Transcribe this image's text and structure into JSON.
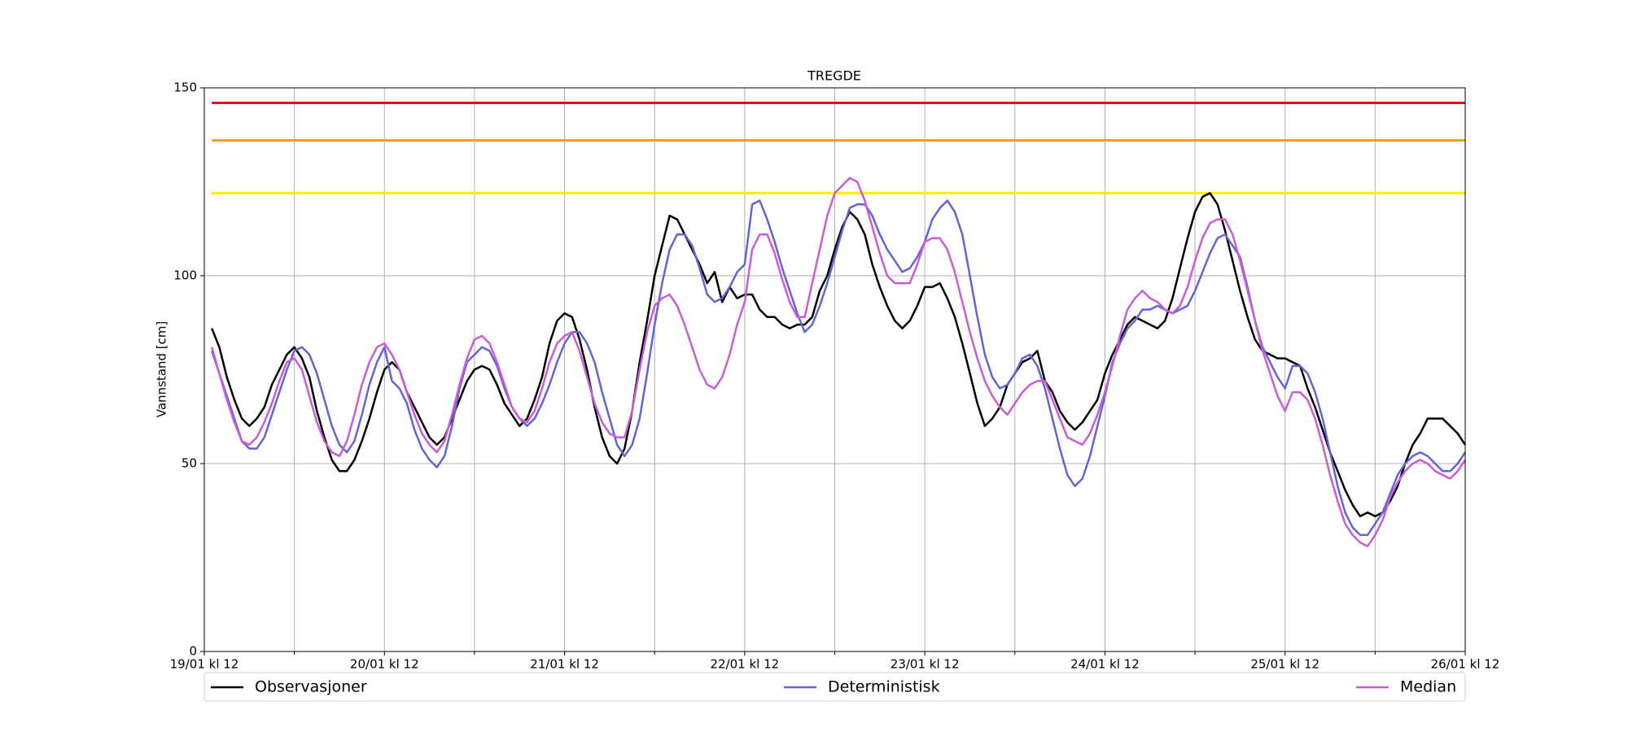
{
  "chart_data": {
    "type": "line",
    "title": "TREGDE",
    "y_label": "Vannstand [cm]",
    "x": [
      1,
      2,
      3,
      4,
      5,
      6,
      7,
      8,
      9,
      10,
      11,
      12,
      13,
      14,
      15,
      16,
      17,
      18,
      19,
      20,
      21,
      22,
      23,
      24,
      25,
      26,
      27,
      28,
      29,
      30,
      31,
      32,
      33,
      34,
      35,
      36,
      37,
      38,
      39,
      40,
      41,
      42,
      43,
      44,
      45,
      46,
      47,
      48,
      49,
      50,
      51,
      52,
      53,
      54,
      55,
      56,
      57,
      58,
      59,
      60,
      61,
      62,
      63,
      64,
      65,
      66,
      67,
      68,
      69,
      70,
      71,
      72,
      73,
      74,
      75,
      76,
      77,
      78,
      79,
      80,
      81,
      82,
      83,
      84,
      85,
      86,
      87,
      88,
      89,
      90,
      91,
      92,
      93,
      94,
      95,
      96,
      97,
      98,
      99,
      100,
      101,
      102,
      103,
      104,
      105,
      106,
      107,
      108,
      109,
      110,
      111,
      112,
      113,
      114,
      115,
      116,
      117,
      118,
      119,
      120,
      121,
      122,
      123,
      124,
      125,
      126,
      127,
      128,
      129,
      130,
      131,
      132,
      133,
      134,
      135,
      136,
      137,
      138,
      139,
      140,
      141,
      142,
      143,
      144,
      145,
      146,
      147,
      148,
      149,
      150,
      151,
      152,
      153,
      154,
      155,
      156,
      157,
      158,
      159,
      160,
      161,
      162,
      163,
      164,
      165,
      166,
      167,
      168
    ],
    "xlim": [
      0,
      168
    ],
    "xticks": [
      {
        "value": 0,
        "label": "19/01 kl 12"
      },
      {
        "value": 24,
        "label": "20/01 kl 12"
      },
      {
        "value": 48,
        "label": "21/01 kl 12"
      },
      {
        "value": 72,
        "label": "22/01 kl 12"
      },
      {
        "value": 96,
        "label": "23/01 kl 12"
      },
      {
        "value": 120,
        "label": "24/01 kl 12"
      },
      {
        "value": 144,
        "label": "25/01 kl 12"
      },
      {
        "value": 168,
        "label": "26/01 kl 12"
      }
    ],
    "xminorticks": [
      12,
      36,
      60,
      84,
      108,
      132,
      156
    ],
    "ylim": [
      0,
      150
    ],
    "yticks": [
      0,
      50,
      100,
      150
    ],
    "grid": true,
    "thresholds": [
      {
        "value": 146,
        "color": "#ff0000"
      },
      {
        "value": 136,
        "color": "#f2a300"
      },
      {
        "value": 122,
        "color": "#f5f000"
      }
    ],
    "series": [
      {
        "name": "Observasjoner",
        "color": "#000000",
        "values": [
          86,
          81,
          73,
          67,
          62,
          60,
          62,
          65,
          71,
          75,
          79,
          81,
          78,
          73,
          64,
          57,
          51,
          48,
          48,
          51,
          56,
          62,
          69,
          75,
          77,
          75,
          69,
          65,
          61,
          57,
          55,
          57,
          62,
          67,
          72,
          75,
          76,
          75,
          71,
          66,
          63,
          60,
          62,
          67,
          73,
          82,
          88,
          90,
          89,
          83,
          75,
          65,
          57,
          52,
          50,
          54,
          64,
          77,
          88,
          100,
          108,
          116,
          115,
          111,
          107,
          103,
          98,
          101,
          93,
          97,
          94,
          95,
          95,
          91,
          89,
          89,
          87,
          86,
          87,
          87,
          89,
          96,
          100,
          107,
          113,
          117,
          115,
          111,
          103,
          97,
          92,
          88,
          86,
          88,
          92,
          97,
          97,
          98,
          94,
          89,
          82,
          74,
          66,
          60,
          62,
          65,
          71,
          74,
          77,
          78,
          80,
          72,
          69,
          64,
          61,
          59,
          61,
          64,
          67,
          74,
          79,
          83,
          87,
          89,
          88,
          87,
          86,
          88,
          94,
          102,
          110,
          117,
          121,
          122,
          119,
          112,
          104,
          96,
          89,
          83,
          80,
          79,
          78,
          78,
          77,
          76,
          70,
          65,
          59,
          53,
          48,
          43,
          39,
          36,
          37,
          36,
          37,
          40,
          44,
          50,
          55,
          58,
          62,
          62,
          62,
          60,
          58,
          55
        ]
      },
      {
        "name": "Deterministisk",
        "color": "#6464d2",
        "values": [
          80,
          74,
          68,
          62,
          56,
          54,
          54,
          57,
          63,
          69,
          75,
          80,
          81,
          79,
          74,
          67,
          60,
          55,
          53,
          56,
          63,
          71,
          77,
          81,
          72,
          70,
          66,
          59,
          54,
          51,
          49,
          52,
          60,
          70,
          77,
          79,
          81,
          80,
          76,
          70,
          65,
          62,
          60,
          62,
          66,
          71,
          77,
          82,
          85,
          85,
          82,
          77,
          69,
          62,
          55,
          52,
          55,
          62,
          74,
          87,
          98,
          107,
          111,
          111,
          108,
          102,
          95,
          93,
          94,
          97,
          101,
          103,
          119,
          120,
          115,
          109,
          102,
          96,
          90,
          85,
          87,
          92,
          98,
          105,
          112,
          118,
          119,
          119,
          116,
          111,
          107,
          104,
          101,
          102,
          105,
          109,
          115,
          118,
          120,
          117,
          111,
          100,
          89,
          79,
          73,
          70,
          71,
          74,
          78,
          79,
          76,
          70,
          62,
          54,
          47,
          44,
          46,
          52,
          60,
          68,
          77,
          82,
          86,
          88,
          91,
          91,
          92,
          91,
          90,
          91,
          92,
          96,
          101,
          106,
          110,
          111,
          108,
          105,
          97,
          88,
          81,
          77,
          73,
          70,
          76,
          76,
          74,
          69,
          62,
          53,
          44,
          37,
          33,
          31,
          31,
          34,
          37,
          42,
          47,
          50,
          52,
          53,
          52,
          50,
          48,
          48,
          50,
          53
        ]
      },
      {
        "name": "Median",
        "color": "#cc5bd8",
        "values": [
          81,
          74,
          67,
          61,
          56,
          55,
          57,
          61,
          66,
          72,
          77,
          78,
          75,
          68,
          61,
          56,
          53,
          52,
          56,
          63,
          71,
          77,
          81,
          82,
          79,
          75,
          69,
          63,
          58,
          55,
          53,
          56,
          63,
          71,
          78,
          83,
          84,
          82,
          77,
          71,
          65,
          62,
          61,
          64,
          70,
          77,
          82,
          84,
          85,
          80,
          73,
          66,
          61,
          58,
          57,
          57,
          64,
          75,
          85,
          92,
          94,
          95,
          92,
          87,
          81,
          75,
          71,
          70,
          73,
          79,
          87,
          93,
          107,
          111,
          111,
          106,
          99,
          93,
          89,
          89,
          98,
          107,
          116,
          122,
          124,
          126,
          125,
          120,
          113,
          106,
          100,
          98,
          98,
          98,
          103,
          109,
          110,
          110,
          107,
          101,
          93,
          85,
          78,
          72,
          68,
          65,
          63,
          66,
          69,
          71,
          72,
          72,
          67,
          62,
          57,
          56,
          55,
          58,
          63,
          69,
          76,
          84,
          91,
          94,
          96,
          94,
          93,
          91,
          90,
          92,
          97,
          104,
          110,
          114,
          115,
          115,
          111,
          104,
          96,
          88,
          80,
          74,
          68,
          64,
          69,
          69,
          67,
          62,
          55,
          47,
          40,
          34,
          31,
          29,
          28,
          31,
          35,
          41,
          45,
          48,
          50,
          51,
          50,
          48,
          47,
          46,
          48,
          51
        ]
      }
    ]
  }
}
